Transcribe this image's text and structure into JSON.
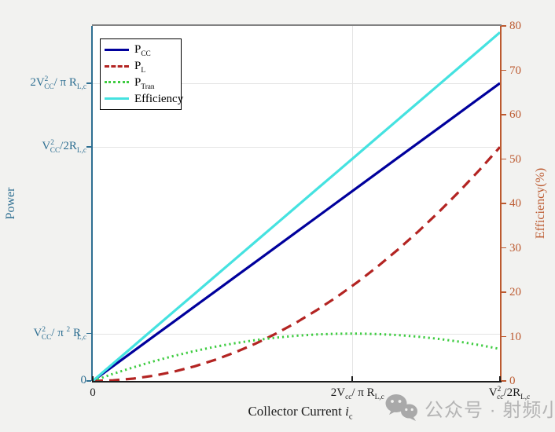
{
  "figure": {
    "background": "#f2f2f0",
    "plot_background": "#ffffff",
    "grid_color": "#e4e4e4"
  },
  "watermark": {
    "icon": "wechat-icon",
    "text": "公众号 · 射频小馆",
    "color": "#b4b4b4"
  },
  "chart_data": {
    "type": "line",
    "title": "",
    "grid": true,
    "x_axis": {
      "label": "Collector Current <i>i</i><sub>c</sub>",
      "range": [
        0,
        1
      ],
      "color": "#1c1c1c",
      "ticks": [
        {
          "value": 0,
          "label": "0",
          "dx": 0
        },
        {
          "value": 0.6366,
          "label": "2V<sub>cc</sub>/ π R<sub>L,c</sub>",
          "dx": 7
        },
        {
          "value": 1,
          "label": "V<sup>2</sup><sub>cc</sub>/2R<sub>L,c</sub>",
          "dx": 12
        }
      ]
    },
    "left_axis": {
      "label": "Power",
      "range": [
        0,
        0.759
      ],
      "color": "#2e6f92",
      "ticks": [
        {
          "value": 0,
          "label": "0"
        },
        {
          "value": 0.1013,
          "label": "V<sup>2</sup><sub>CC</sub>/ π <sup>2</sup> R<sub>L,c</sub>"
        },
        {
          "value": 0.5,
          "label": "V<sup>2</sup><sub>CC</sub>/2R<sub>L,c</sub>"
        },
        {
          "value": 0.6366,
          "label": "2V<sup>2</sup><sub>CC</sub>/ π R<sub>L,c</sub>"
        }
      ]
    },
    "right_axis": {
      "label": "Efficiency(%)",
      "range": [
        0,
        80
      ],
      "color": "#bc5a30",
      "ticks": [
        0,
        10,
        20,
        30,
        40,
        50,
        60,
        70,
        80
      ]
    },
    "legend": {
      "position": "top-left",
      "items": [
        {
          "key": "pcc",
          "label": "P<sub>CC</sub>"
        },
        {
          "key": "pl",
          "label": "P<sub>L</sub>"
        },
        {
          "key": "ptran",
          "label": "P<sub>Tran</sub>"
        },
        {
          "key": "efficiency",
          "label": "Efficiency"
        }
      ]
    },
    "series": [
      {
        "key": "pcc",
        "name": "P_CC",
        "axis": "left",
        "color": "#00009c",
        "style": "solid",
        "width": 3.2,
        "formula": "P_CC = (2/π)·i_c·V_cc (units of V_CC²/R_L,c)",
        "x": [
          0,
          0.05,
          0.1,
          0.15,
          0.2,
          0.25,
          0.3,
          0.35,
          0.4,
          0.45,
          0.5,
          0.55,
          0.6,
          0.65,
          0.7,
          0.75,
          0.8,
          0.85,
          0.9,
          0.95,
          1
        ],
        "y": [
          0,
          0.0318,
          0.0637,
          0.0955,
          0.1273,
          0.1592,
          0.191,
          0.2228,
          0.2546,
          0.2865,
          0.3183,
          0.3501,
          0.382,
          0.4138,
          0.4456,
          0.4775,
          0.5093,
          0.5411,
          0.573,
          0.6048,
          0.6366
        ]
      },
      {
        "key": "pl",
        "name": "P_L",
        "axis": "left",
        "color": "#b32422",
        "style": "dashed",
        "width": 3.2,
        "formula": "P_L = 0.5·i_c²·R_L,c (units of V_CC²/R_L,c)",
        "x": [
          0,
          0.05,
          0.1,
          0.15,
          0.2,
          0.25,
          0.3,
          0.35,
          0.4,
          0.45,
          0.5,
          0.55,
          0.6,
          0.65,
          0.7,
          0.75,
          0.8,
          0.85,
          0.9,
          0.95,
          1
        ],
        "y": [
          0,
          0.0013,
          0.005,
          0.0113,
          0.02,
          0.0313,
          0.045,
          0.0613,
          0.08,
          0.1013,
          0.125,
          0.1513,
          0.18,
          0.2113,
          0.245,
          0.2813,
          0.32,
          0.3613,
          0.405,
          0.4513,
          0.5
        ]
      },
      {
        "key": "ptran",
        "name": "P_Tran",
        "axis": "left",
        "color": "#3ecc41",
        "style": "dotted",
        "width": 3,
        "formula": "P_Tran = (1/π)·i_c - 0.25·i_c², peak V_CC²/π²R_L,c at i_c = 2V_cc/πR_L,c",
        "x": [
          0,
          0.05,
          0.1,
          0.15,
          0.2,
          0.25,
          0.3,
          0.35,
          0.4,
          0.45,
          0.5,
          0.55,
          0.6,
          0.65,
          0.7,
          0.75,
          0.8,
          0.85,
          0.9,
          0.95,
          1
        ],
        "y": [
          0,
          0.0153,
          0.0293,
          0.0421,
          0.0537,
          0.0639,
          0.073,
          0.0808,
          0.0873,
          0.0926,
          0.0967,
          0.0994,
          0.101,
          0.1013,
          0.1003,
          0.0981,
          0.0946,
          0.0899,
          0.084,
          0.0768,
          0.0683
        ]
      },
      {
        "key": "efficiency",
        "name": "Efficiency",
        "axis": "right",
        "color": "#45e2e0",
        "style": "solid",
        "width": 3.2,
        "formula": "Efficiency(%) = 78.54·i_c, max 78.54% (π/4)",
        "x": [
          0,
          0.05,
          0.1,
          0.15,
          0.2,
          0.25,
          0.3,
          0.35,
          0.4,
          0.45,
          0.5,
          0.55,
          0.6,
          0.65,
          0.7,
          0.75,
          0.8,
          0.85,
          0.9,
          0.95,
          1
        ],
        "y": [
          0,
          3.93,
          7.85,
          11.78,
          15.71,
          19.63,
          23.56,
          27.49,
          31.42,
          35.34,
          39.27,
          43.2,
          47.12,
          51.05,
          54.98,
          58.9,
          62.83,
          66.76,
          70.69,
          74.61,
          78.54
        ]
      }
    ]
  }
}
